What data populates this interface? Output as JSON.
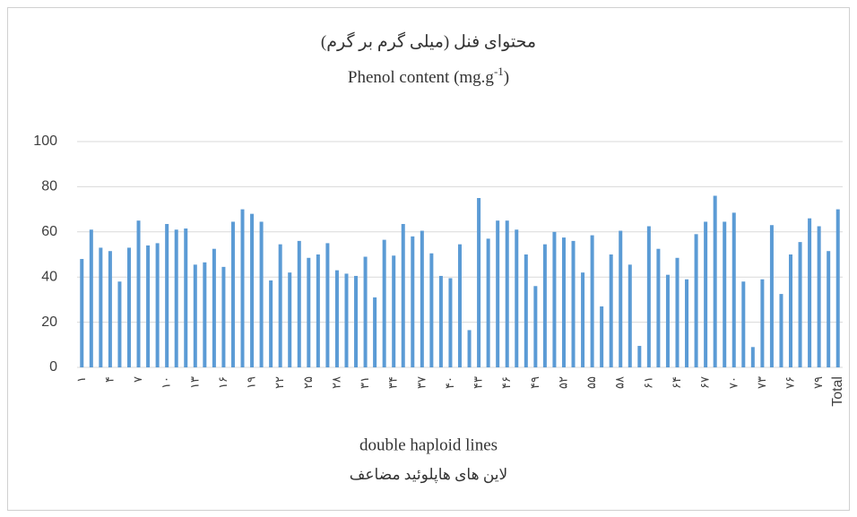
{
  "chart_data": {
    "type": "bar",
    "title": "محتوای فنل (میلی گرم بر گرم)",
    "subtitle": "Phenol content (mg.g-1)",
    "x_label": "double haploid lines",
    "x_label_fa": "لاین های هاپلوئید مضاعف",
    "categories": [
      "۱",
      null,
      null,
      "۴",
      null,
      null,
      "۷",
      null,
      null,
      "۱۰",
      null,
      null,
      "۱۳",
      null,
      null,
      "۱۶",
      null,
      null,
      "۱۹",
      null,
      null,
      "۲۲",
      null,
      null,
      "۲۵",
      null,
      null,
      "۲۸",
      null,
      null,
      "۳۱",
      null,
      null,
      "۳۴",
      null,
      null,
      "۳۷",
      null,
      null,
      "۴۰",
      null,
      null,
      "۴۳",
      null,
      null,
      "۴۶",
      null,
      null,
      "۴۹",
      null,
      null,
      "۵۲",
      null,
      null,
      "۵۵",
      null,
      null,
      "۵۸",
      null,
      null,
      "۶۱",
      null,
      null,
      "۶۴",
      null,
      null,
      "۶۷",
      null,
      null,
      "۷۰",
      null,
      null,
      "۷۳",
      null,
      null,
      "۷۶",
      null,
      null,
      "۷۹",
      null,
      "Total"
    ],
    "values": [
      48,
      61,
      53,
      51.5,
      38,
      53,
      65,
      54,
      55,
      63.5,
      61,
      61.5,
      45.5,
      46.5,
      52.5,
      44.5,
      64.5,
      70,
      68,
      64.5,
      38.5,
      54.5,
      42,
      56,
      48.5,
      50,
      55,
      43,
      41.5,
      40.5,
      49,
      31,
      56.5,
      49.5,
      63.5,
      58,
      60.5,
      50.5,
      40.5,
      39.5,
      54.5,
      16.5,
      75,
      57,
      65,
      65,
      61,
      50,
      36,
      54.5,
      60,
      57.5,
      56,
      42,
      58.5,
      27,
      50,
      60.5,
      45.5,
      9.5,
      62.5,
      52.5,
      41,
      48.5,
      39,
      59,
      64.5,
      76,
      64.5,
      68.5,
      38,
      9,
      39,
      63,
      32.5,
      50,
      55.5,
      66,
      62.5,
      51.5,
      70
    ],
    "color": "#5b9bd5",
    "ylim": [
      0,
      100
    ],
    "yticks": [
      0,
      20,
      40,
      60,
      80,
      100
    ],
    "grid": true
  }
}
